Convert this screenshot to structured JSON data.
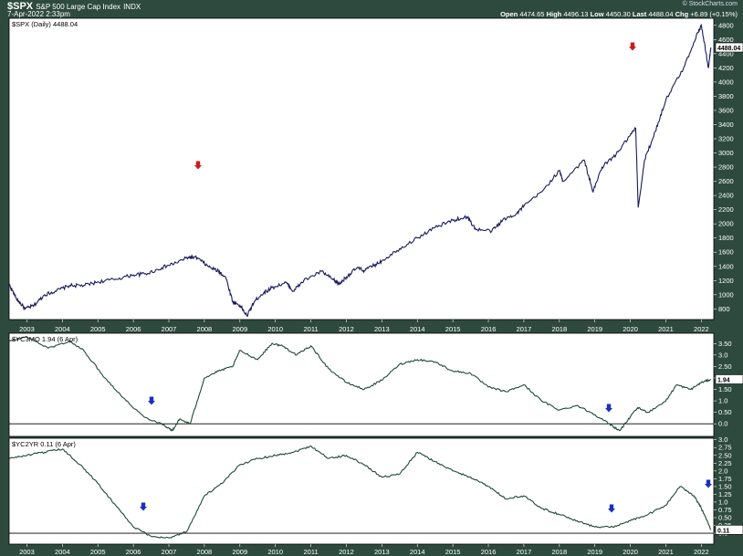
{
  "header": {
    "symbol": "$SPX",
    "name": "S&P 500 Large Cap Index",
    "exchange": "INDX",
    "datetime": "7-Apr-2022 2:33pm",
    "brand": "© StockCharts.com",
    "open_label": "Open",
    "open": "4474.65",
    "high_label": "High",
    "high": "4496.13",
    "low_label": "Low",
    "low": "4450.30",
    "last_label": "Last",
    "last": "4488.04",
    "chg_label": "Chg",
    "chg": "+6.89 (+0.15%)"
  },
  "colors": {
    "background": "#2e4a3f",
    "panel": "#ffffff",
    "spx_line": "#1a1a5c",
    "yield_line": "#1f4a35",
    "red_arrow": "#cc1a1a",
    "blue_arrow": "#1a2fc0"
  },
  "chart_data": [
    {
      "type": "line",
      "panel": "price",
      "legend": "$SPX (Daily) 4488.04",
      "last_badge": "4488.04",
      "ylim": [
        650,
        4900
      ],
      "yticks": [
        800,
        1000,
        1200,
        1400,
        1600,
        1800,
        2000,
        2200,
        2400,
        2600,
        2800,
        3000,
        3200,
        3400,
        3600,
        3800,
        4000,
        4200,
        4400,
        4600,
        4800
      ],
      "xlim": [
        2002.5,
        2022.35
      ],
      "x_tick_labels": [
        "2003",
        "2004",
        "2005",
        "2006",
        "2007",
        "2008",
        "2009",
        "2010",
        "2011",
        "2012",
        "2013",
        "2014",
        "2015",
        "2016",
        "2017",
        "2018",
        "2019",
        "2020",
        "2021",
        "2022"
      ],
      "series": [
        {
          "x": [
            2002.5,
            2002.7,
            2002.95,
            2003.2,
            2003.5,
            2003.8,
            2004.2,
            2004.6,
            2005.0,
            2005.5,
            2006.0,
            2006.4,
            2006.8,
            2007.2,
            2007.55,
            2007.8,
            2008.1,
            2008.4,
            2008.6,
            2008.8,
            2009.0,
            2009.2,
            2009.4,
            2009.6,
            2009.9,
            2010.3,
            2010.5,
            2010.8,
            2011.3,
            2011.6,
            2011.8,
            2012.0,
            2012.3,
            2012.5,
            2012.8,
            2013.0,
            2013.5,
            2014.0,
            2014.5,
            2015.0,
            2015.4,
            2015.65,
            2016.1,
            2016.4,
            2016.8,
            2017.0,
            2017.5,
            2018.0,
            2018.1,
            2018.7,
            2018.95,
            2019.2,
            2019.6,
            2020.0,
            2020.15,
            2020.22,
            2020.4,
            2020.7,
            2021.0,
            2021.5,
            2021.9,
            2022.0,
            2022.2,
            2022.27
          ],
          "y": [
            1150,
            950,
            800,
            850,
            1000,
            1050,
            1130,
            1130,
            1180,
            1220,
            1280,
            1300,
            1380,
            1450,
            1530,
            1520,
            1400,
            1330,
            1250,
            900,
            850,
            700,
            900,
            1000,
            1100,
            1170,
            1050,
            1200,
            1330,
            1220,
            1150,
            1250,
            1380,
            1340,
            1420,
            1480,
            1650,
            1800,
            1950,
            2050,
            2100,
            1920,
            1900,
            2050,
            2150,
            2250,
            2450,
            2750,
            2600,
            2900,
            2450,
            2800,
            2980,
            3250,
            3350,
            2230,
            2900,
            3300,
            3750,
            4200,
            4700,
            4800,
            4200,
            4488
          ]
        }
      ]
    },
    {
      "type": "line",
      "panel": "yc3mo",
      "legend": "$YC3MO 1.94 (6 Apr)",
      "last_badge": "1.94",
      "ylim": [
        -0.55,
        3.95
      ],
      "yticks": [
        0.0,
        0.5,
        1.0,
        1.5,
        2.0,
        2.5,
        3.0,
        3.5
      ],
      "reference_line": 0.0,
      "series": [
        {
          "x": [
            2002.5,
            2003.0,
            2003.6,
            2004.2,
            2004.6,
            2005.2,
            2005.8,
            2006.3,
            2006.8,
            2007.1,
            2007.3,
            2007.6,
            2008.0,
            2008.4,
            2008.8,
            2009.0,
            2009.5,
            2009.9,
            2010.2,
            2010.6,
            2011.0,
            2011.5,
            2012.0,
            2012.5,
            2013.0,
            2013.5,
            2014.0,
            2014.5,
            2015.0,
            2015.5,
            2016.0,
            2016.5,
            2017.0,
            2017.5,
            2018.0,
            2018.5,
            2019.0,
            2019.4,
            2019.7,
            2019.85,
            2020.2,
            2020.5,
            2021.0,
            2021.3,
            2021.7,
            2022.0,
            2022.27
          ],
          "y": [
            3.6,
            3.8,
            3.3,
            3.6,
            3.2,
            2.0,
            1.0,
            0.3,
            0.0,
            -0.3,
            0.2,
            0.0,
            2.0,
            2.3,
            2.5,
            3.2,
            2.8,
            3.5,
            3.4,
            3.0,
            3.4,
            2.4,
            1.8,
            1.5,
            1.9,
            2.6,
            2.8,
            2.7,
            2.3,
            2.2,
            1.6,
            1.4,
            1.7,
            1.0,
            0.6,
            0.8,
            0.4,
            0.0,
            -0.3,
            0.0,
            0.7,
            0.5,
            1.0,
            1.7,
            1.5,
            1.8,
            1.94
          ]
        }
      ]
    },
    {
      "type": "line",
      "panel": "yc2yr",
      "legend": "$YC2YR 0.11 (6 Apr)",
      "last_badge": "0.11",
      "ylim": [
        -0.35,
        3.05
      ],
      "yticks": [
        0.0,
        0.25,
        0.5,
        0.75,
        1.0,
        1.25,
        1.5,
        1.75,
        2.0,
        2.25,
        2.5,
        2.75,
        3.0
      ],
      "reference_line": 0.0,
      "series": [
        {
          "x": [
            2002.5,
            2003.0,
            2003.5,
            2004.0,
            2004.5,
            2005.0,
            2005.5,
            2006.0,
            2006.5,
            2007.0,
            2007.5,
            2008.0,
            2008.5,
            2009.0,
            2009.5,
            2010.0,
            2010.5,
            2011.0,
            2011.5,
            2012.0,
            2012.5,
            2013.0,
            2013.5,
            2014.0,
            2014.5,
            2015.0,
            2015.5,
            2016.0,
            2016.5,
            2017.0,
            2017.5,
            2018.0,
            2018.5,
            2019.0,
            2019.5,
            2020.0,
            2020.5,
            2021.0,
            2021.4,
            2021.8,
            2022.0,
            2022.27
          ],
          "y": [
            2.4,
            2.5,
            2.6,
            2.7,
            2.2,
            1.6,
            0.9,
            0.2,
            -0.1,
            -0.15,
            0.05,
            1.2,
            1.6,
            2.2,
            2.4,
            2.5,
            2.6,
            2.8,
            2.4,
            2.5,
            2.2,
            1.8,
            1.9,
            2.6,
            2.3,
            2.0,
            1.8,
            1.5,
            1.1,
            1.2,
            0.8,
            0.6,
            0.4,
            0.2,
            0.2,
            0.4,
            0.6,
            0.9,
            1.5,
            1.2,
            0.8,
            0.11
          ]
        }
      ]
    }
  ]
}
